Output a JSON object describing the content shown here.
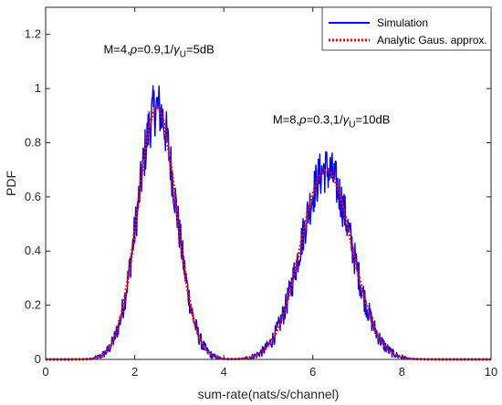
{
  "chart_data": {
    "type": "line",
    "xlabel": "sum-rate(nats/s/channel)",
    "ylabel": "PDF",
    "xlim": [
      0,
      10
    ],
    "ylim": [
      0,
      1.3
    ],
    "xticks": [
      "0",
      "2",
      "4",
      "6",
      "8",
      "10"
    ],
    "yticks": [
      "0",
      "0.2",
      "0.4",
      "0.6",
      "0.8",
      "1",
      "1.2"
    ],
    "grid": false,
    "legend_position": "top-right",
    "legend": [
      {
        "label": "Simulation",
        "color": "#0000ff",
        "style": "solid"
      },
      {
        "label": "Analytic Gaus. approx.",
        "color": "#ff0000",
        "style": "dotted"
      }
    ],
    "annotations": [
      {
        "x": 1.3,
        "y": 1.13,
        "prefix": "M=4,",
        "rho": "ρ",
        "mid": "=0.9,1/",
        "gamma": "γ",
        "sub": "U",
        "suffix": "=5dB"
      },
      {
        "x": 5.1,
        "y": 0.87,
        "prefix": "M=8,",
        "rho": "ρ",
        "mid": "=0.3,1/",
        "gamma": "γ",
        "sub": "U",
        "suffix": "=10dB"
      }
    ],
    "series": [
      {
        "name": "Simulation",
        "color": "#0000ff",
        "components": [
          {
            "mean": 2.5,
            "std": 0.43,
            "amplitude": 0.93
          },
          {
            "mean": 6.3,
            "std": 0.57,
            "amplitude": 0.7
          }
        ],
        "x_range": [
          0,
          10
        ],
        "noise_amplitude": 0.1,
        "peak_max": 1.1
      },
      {
        "name": "Analytic Gaus. approx.",
        "color": "#ff0000",
        "components": [
          {
            "mean": 2.5,
            "std": 0.43,
            "amplitude": 0.93
          },
          {
            "mean": 6.3,
            "std": 0.57,
            "amplitude": 0.7
          }
        ],
        "x_range": [
          0,
          10
        ]
      }
    ]
  }
}
